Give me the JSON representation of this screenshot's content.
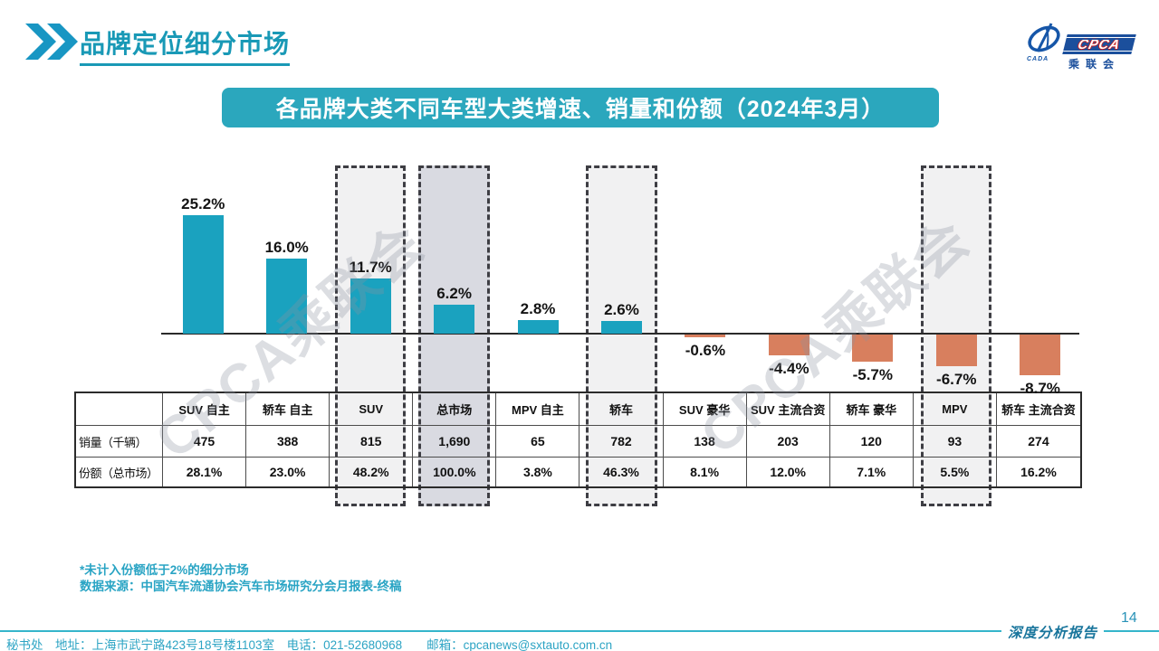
{
  "header": {
    "title": "品牌定位细分市场"
  },
  "logo": {
    "cada": "CADA",
    "cpca": "CPCA",
    "cn": "乘联会"
  },
  "banner": {
    "title": "各品牌大类不同车型大类增速、销量和份额（2024年3月）"
  },
  "watermark": {
    "text": "CPCA乘联会"
  },
  "chart_data": {
    "type": "bar",
    "title": "各品牌大类不同车型大类增速、销量和份额（2024年3月）",
    "categories": [
      "SUV 自主",
      "轿车 自主",
      "SUV",
      "总市场",
      "MPV 自主",
      "轿车",
      "SUV 豪华",
      "SUV 主流合资",
      "轿车 豪华",
      "MPV",
      "轿车 主流合资"
    ],
    "series": [
      {
        "name": "增速",
        "unit": "%",
        "values": [
          25.2,
          16.0,
          11.7,
          6.2,
          2.8,
          2.6,
          -0.6,
          -4.4,
          -5.7,
          -6.7,
          -8.7
        ]
      }
    ],
    "value_labels": [
      "25.2%",
      "16.0%",
      "11.7%",
      "6.2%",
      "2.8%",
      "2.6%",
      "-0.6%",
      "-4.4%",
      "-5.7%",
      "-6.7%",
      "-8.7%"
    ],
    "table_rows": [
      {
        "label": "销量（千辆）",
        "values": [
          "475",
          "388",
          "815",
          "1,690",
          "65",
          "782",
          "138",
          "203",
          "120",
          "93",
          "274"
        ]
      },
      {
        "label": "份额（总市场）",
        "values": [
          "28.1%",
          "23.0%",
          "48.2%",
          "100.0%",
          "3.8%",
          "46.3%",
          "8.1%",
          "12.0%",
          "7.1%",
          "5.5%",
          "16.2%"
        ]
      }
    ],
    "highlighted_columns": [
      2,
      3,
      5,
      9
    ],
    "highlight_fill_default": "#f1f1f2",
    "highlight_fill_total": "#d9dae1",
    "positive_color": "#1aa2bf",
    "negative_color": "#d87f5e",
    "ylim": [
      -10,
      27
    ],
    "grid": false,
    "legend": false
  },
  "footnotes": {
    "line1": "*未计入份额低于2%的细分市场",
    "line2": "数据来源：中国汽车流通协会汽车市场研究分会月报表-终稿"
  },
  "footer": {
    "contact": "秘书处　地址：上海市武宁路423号18号楼1103室　电话：021-52680968　　邮箱：cpcanews@sxtauto.com.cn",
    "report": "深度分析报告",
    "page": "14"
  }
}
